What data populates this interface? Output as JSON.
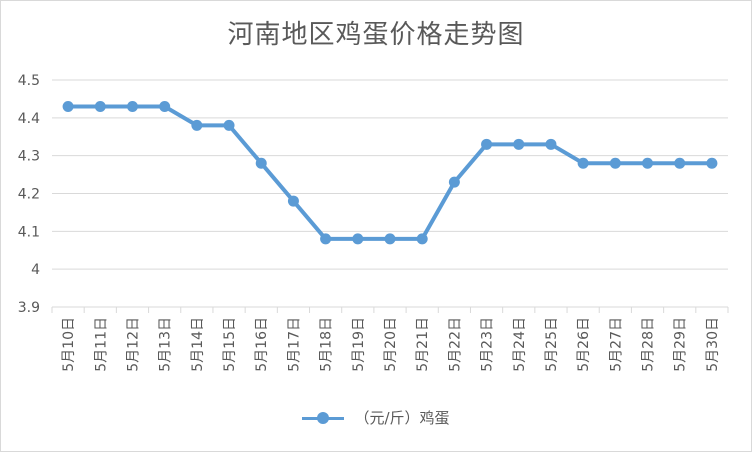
{
  "chart_data": {
    "type": "line",
    "title": "河南地区鸡蛋价格走势图",
    "categories": [
      "5月10日",
      "5月11日",
      "5月12日",
      "5月13日",
      "5月14日",
      "5月15日",
      "5月16日",
      "5月17日",
      "5月18日",
      "5月19日",
      "5月20日",
      "5月21日",
      "5月22日",
      "5月23日",
      "5月24日",
      "5月25日",
      "5月26日",
      "5月27日",
      "5月28日",
      "5月29日",
      "5月30日"
    ],
    "series": [
      {
        "name": "（元/斤）鸡蛋",
        "values": [
          4.43,
          4.43,
          4.43,
          4.43,
          4.38,
          4.38,
          4.28,
          4.18,
          4.08,
          4.08,
          4.08,
          4.08,
          4.23,
          4.33,
          4.33,
          4.33,
          4.28,
          4.28,
          4.28,
          4.28,
          4.28
        ]
      }
    ],
    "yticks": [
      "3.9",
      "4",
      "4.1",
      "4.2",
      "4.3",
      "4.4",
      "4.5"
    ],
    "ylim": [
      3.9,
      4.5
    ],
    "grid": true,
    "legend_position": "bottom",
    "colors": {
      "series": "#5b9bd5",
      "grid": "#d9d9d9",
      "text": "#595959"
    }
  }
}
